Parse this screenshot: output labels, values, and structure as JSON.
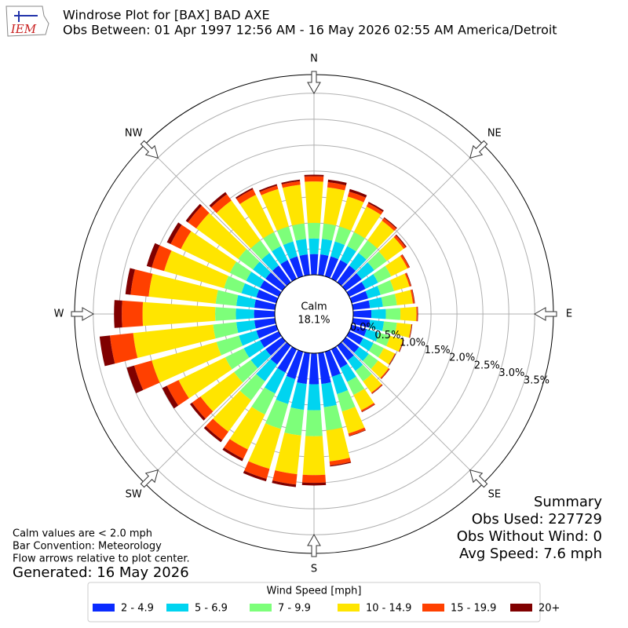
{
  "chart_data": {
    "type": "windrose",
    "logo": "IEM",
    "title": "Windrose Plot for [BAX] BAD AXE",
    "subtitle": "Obs Between: 01 Apr 1997 12:56 AM - 16 May 2026 02:55 AM America/Detroit",
    "x": [
      10,
      20,
      30,
      40,
      50,
      60,
      70,
      80,
      90,
      100,
      110,
      120,
      130,
      140,
      150,
      160,
      170,
      180,
      190,
      200,
      210,
      220,
      230,
      240,
      250,
      260,
      270,
      280,
      290,
      300,
      310,
      320,
      330,
      340,
      350,
      360
    ],
    "xlim": [
      0,
      360
    ],
    "xticks": [
      {
        "value": 0,
        "label": "N"
      },
      {
        "value": 45,
        "label": "NE"
      },
      {
        "value": 90,
        "label": "E"
      },
      {
        "value": 135,
        "label": "SE"
      },
      {
        "value": 180,
        "label": "S"
      },
      {
        "value": 225,
        "label": "SW"
      },
      {
        "value": 270,
        "label": "W"
      },
      {
        "value": 315,
        "label": "NW"
      }
    ],
    "ylim": [
      0,
      3.86
    ],
    "yticks": [
      {
        "value": 0,
        "label": "0.0%"
      },
      {
        "value": 0.5,
        "label": "0.5%"
      },
      {
        "value": 1,
        "label": "1.0%"
      },
      {
        "value": 1.5,
        "label": "1.5%"
      },
      {
        "value": 2,
        "label": "2.0%"
      },
      {
        "value": 2.5,
        "label": "2.5%"
      },
      {
        "value": 3,
        "label": "3.0%"
      },
      {
        "value": 3.5,
        "label": "3.5%"
      }
    ],
    "grid": true,
    "calm": {
      "name": "Calm",
      "values": [
        18.1
      ],
      "value_labels": [
        "18.1%"
      ]
    },
    "legend_title": "Wind Speed [mph]",
    "series": [
      {
        "name": "2 - 4.9",
        "color": "#0a2bff",
        "values": [
          0.4,
          0.4,
          0.4,
          0.4,
          0.38,
          0.35,
          0.33,
          0.33,
          0.35,
          0.33,
          0.3,
          0.3,
          0.32,
          0.35,
          0.4,
          0.5,
          0.6,
          0.6,
          0.6,
          0.55,
          0.5,
          0.45,
          0.4,
          0.4,
          0.4,
          0.4,
          0.4,
          0.4,
          0.4,
          0.4,
          0.4,
          0.4,
          0.4,
          0.4,
          0.4,
          0.4
        ]
      },
      {
        "name": "5 - 6.9",
        "color": "#00d4f0",
        "values": [
          0.3,
          0.3,
          0.3,
          0.3,
          0.3,
          0.27,
          0.25,
          0.25,
          0.28,
          0.27,
          0.25,
          0.22,
          0.23,
          0.25,
          0.3,
          0.35,
          0.45,
          0.5,
          0.5,
          0.5,
          0.45,
          0.4,
          0.35,
          0.35,
          0.35,
          0.35,
          0.35,
          0.35,
          0.3,
          0.3,
          0.3,
          0.3,
          0.3,
          0.3,
          0.3,
          0.3
        ]
      },
      {
        "name": "7 - 9.9",
        "color": "#7dff7a",
        "values": [
          0.3,
          0.3,
          0.3,
          0.3,
          0.3,
          0.28,
          0.27,
          0.27,
          0.28,
          0.25,
          0.22,
          0.22,
          0.22,
          0.25,
          0.28,
          0.35,
          0.45,
          0.5,
          0.5,
          0.5,
          0.45,
          0.45,
          0.4,
          0.4,
          0.45,
          0.45,
          0.4,
          0.4,
          0.35,
          0.35,
          0.35,
          0.3,
          0.3,
          0.3,
          0.3,
          0.3
        ]
      },
      {
        "name": "10 - 14.9",
        "color": "#ffe500",
        "values": [
          0.7,
          0.6,
          0.55,
          0.47,
          0.4,
          0.35,
          0.31,
          0.31,
          0.31,
          0.28,
          0.26,
          0.24,
          0.25,
          0.27,
          0.33,
          0.44,
          0.6,
          0.75,
          0.75,
          0.8,
          0.75,
          0.75,
          0.8,
          1.0,
          1.3,
          1.55,
          1.4,
          1.3,
          1.2,
          1.05,
          1.0,
          0.95,
          0.8,
          0.75,
          0.75,
          0.8
        ]
      },
      {
        "name": "15 - 19.9",
        "color": "#ff4000",
        "values": [
          0.1,
          0.1,
          0.07,
          0.06,
          0.05,
          0.04,
          0.03,
          0.03,
          0.02,
          0.01,
          0.01,
          0.01,
          0.02,
          0.02,
          0.03,
          0.05,
          0.08,
          0.15,
          0.2,
          0.2,
          0.2,
          0.2,
          0.2,
          0.25,
          0.35,
          0.45,
          0.4,
          0.35,
          0.25,
          0.22,
          0.2,
          0.15,
          0.12,
          0.07,
          0.07,
          0.1
        ]
      },
      {
        "name": "20+",
        "color": "#800000",
        "values": [
          0.05,
          0.05,
          0.03,
          0.02,
          0.02,
          0.01,
          0.01,
          0.01,
          0.01,
          0.01,
          0.01,
          0.01,
          0.01,
          0.01,
          0.01,
          0.01,
          0.02,
          0.05,
          0.05,
          0.05,
          0.05,
          0.05,
          0.05,
          0.1,
          0.15,
          0.2,
          0.15,
          0.1,
          0.1,
          0.08,
          0.05,
          0.05,
          0.03,
          0.03,
          0.03,
          0.03
        ]
      }
    ],
    "notes": [
      "Calm values are < 2.0 mph",
      "Bar Convention: Meteorology",
      "Flow arrows relative to plot center."
    ],
    "generated": "Generated: 16 May 2026",
    "summary": {
      "title": "Summary",
      "lines": [
        "Obs Used: 227729",
        "Obs Without Wind: 0",
        "Avg Speed: 7.6 mph"
      ]
    }
  }
}
